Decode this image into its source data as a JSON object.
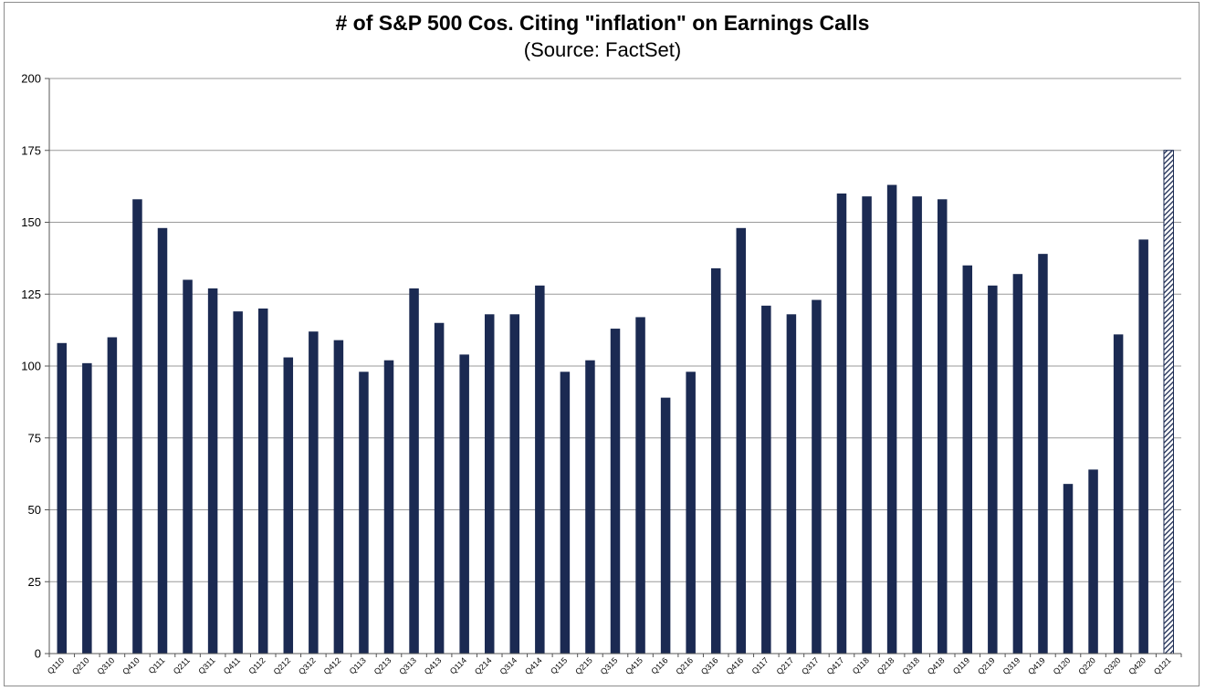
{
  "chart_data": {
    "type": "bar",
    "title": "# of S&P 500 Cos. Citing \"inflation\" on Earnings Calls",
    "subtitle": "(Source: FactSet)",
    "xlabel": "",
    "ylabel": "",
    "ylim": [
      0,
      200
    ],
    "yticks": [
      0,
      25,
      50,
      75,
      100,
      125,
      150,
      175,
      200
    ],
    "grid": true,
    "bar_color": "#1b2a52",
    "highlight_color": "#1b2a52",
    "categories": [
      "Q110",
      "Q210",
      "Q310",
      "Q410",
      "Q111",
      "Q211",
      "Q311",
      "Q411",
      "Q112",
      "Q212",
      "Q312",
      "Q412",
      "Q113",
      "Q213",
      "Q313",
      "Q413",
      "Q114",
      "Q214",
      "Q314",
      "Q414",
      "Q115",
      "Q215",
      "Q315",
      "Q415",
      "Q116",
      "Q216",
      "Q316",
      "Q416",
      "Q117",
      "Q217",
      "Q317",
      "Q417",
      "Q118",
      "Q218",
      "Q318",
      "Q418",
      "Q119",
      "Q219",
      "Q319",
      "Q419",
      "Q120",
      "Q220",
      "Q320",
      "Q420",
      "Q121"
    ],
    "values": [
      108,
      101,
      110,
      158,
      148,
      130,
      127,
      119,
      120,
      103,
      112,
      109,
      98,
      102,
      127,
      115,
      104,
      118,
      118,
      128,
      98,
      102,
      113,
      117,
      89,
      98,
      134,
      148,
      121,
      118,
      123,
      160,
      159,
      163,
      159,
      158,
      135,
      128,
      132,
      139,
      59,
      64,
      111,
      144,
      175
    ],
    "hatched_index": 44
  }
}
